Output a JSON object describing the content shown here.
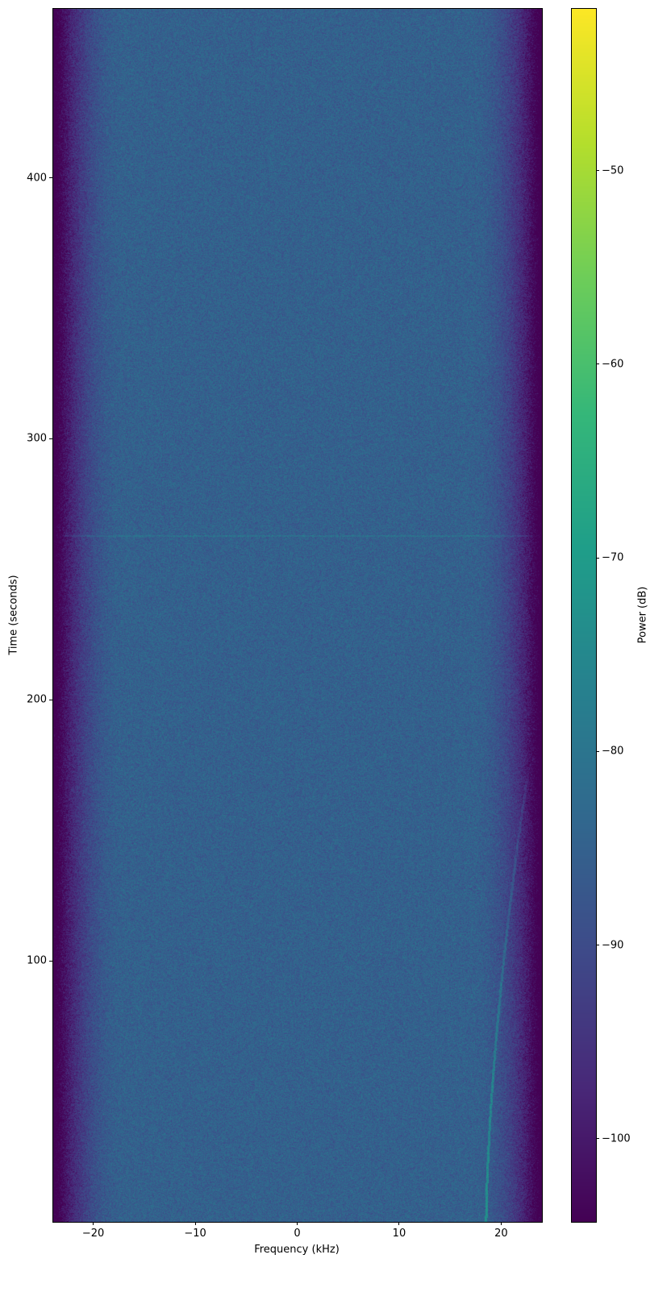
{
  "chart_data": {
    "type": "heatmap",
    "title": "",
    "xlabel": "Frequency (kHz)",
    "ylabel": "Time (seconds)",
    "colorbar_label": "Power (dB)",
    "colormap": "viridis",
    "xlim": [
      -24,
      24
    ],
    "ylim": [
      0,
      465
    ],
    "clim": [
      -104.3,
      -41.6
    ],
    "xticks": [
      -20,
      -10,
      0,
      10,
      20
    ],
    "xtick_labels": [
      "−20",
      "−10",
      "0",
      "10",
      "20"
    ],
    "yticks": [
      100,
      200,
      300,
      400
    ],
    "ytick_labels": [
      "100",
      "200",
      "300",
      "400"
    ],
    "cticks": [
      -100,
      -90,
      -80,
      -70,
      -60,
      -50
    ],
    "ctick_labels": [
      "−100",
      "−90",
      "−80",
      "−70",
      "−60",
      "−50"
    ],
    "noise_floor_db": -85,
    "band_edges_khz": [
      -20,
      20
    ],
    "features": {
      "horizontal_line_time_s": 263,
      "chirp": {
        "start": {
          "time_s": 0,
          "freq_khz": 18.5
        },
        "end": {
          "time_s": 170,
          "freq_khz": 22.5
        }
      }
    }
  }
}
